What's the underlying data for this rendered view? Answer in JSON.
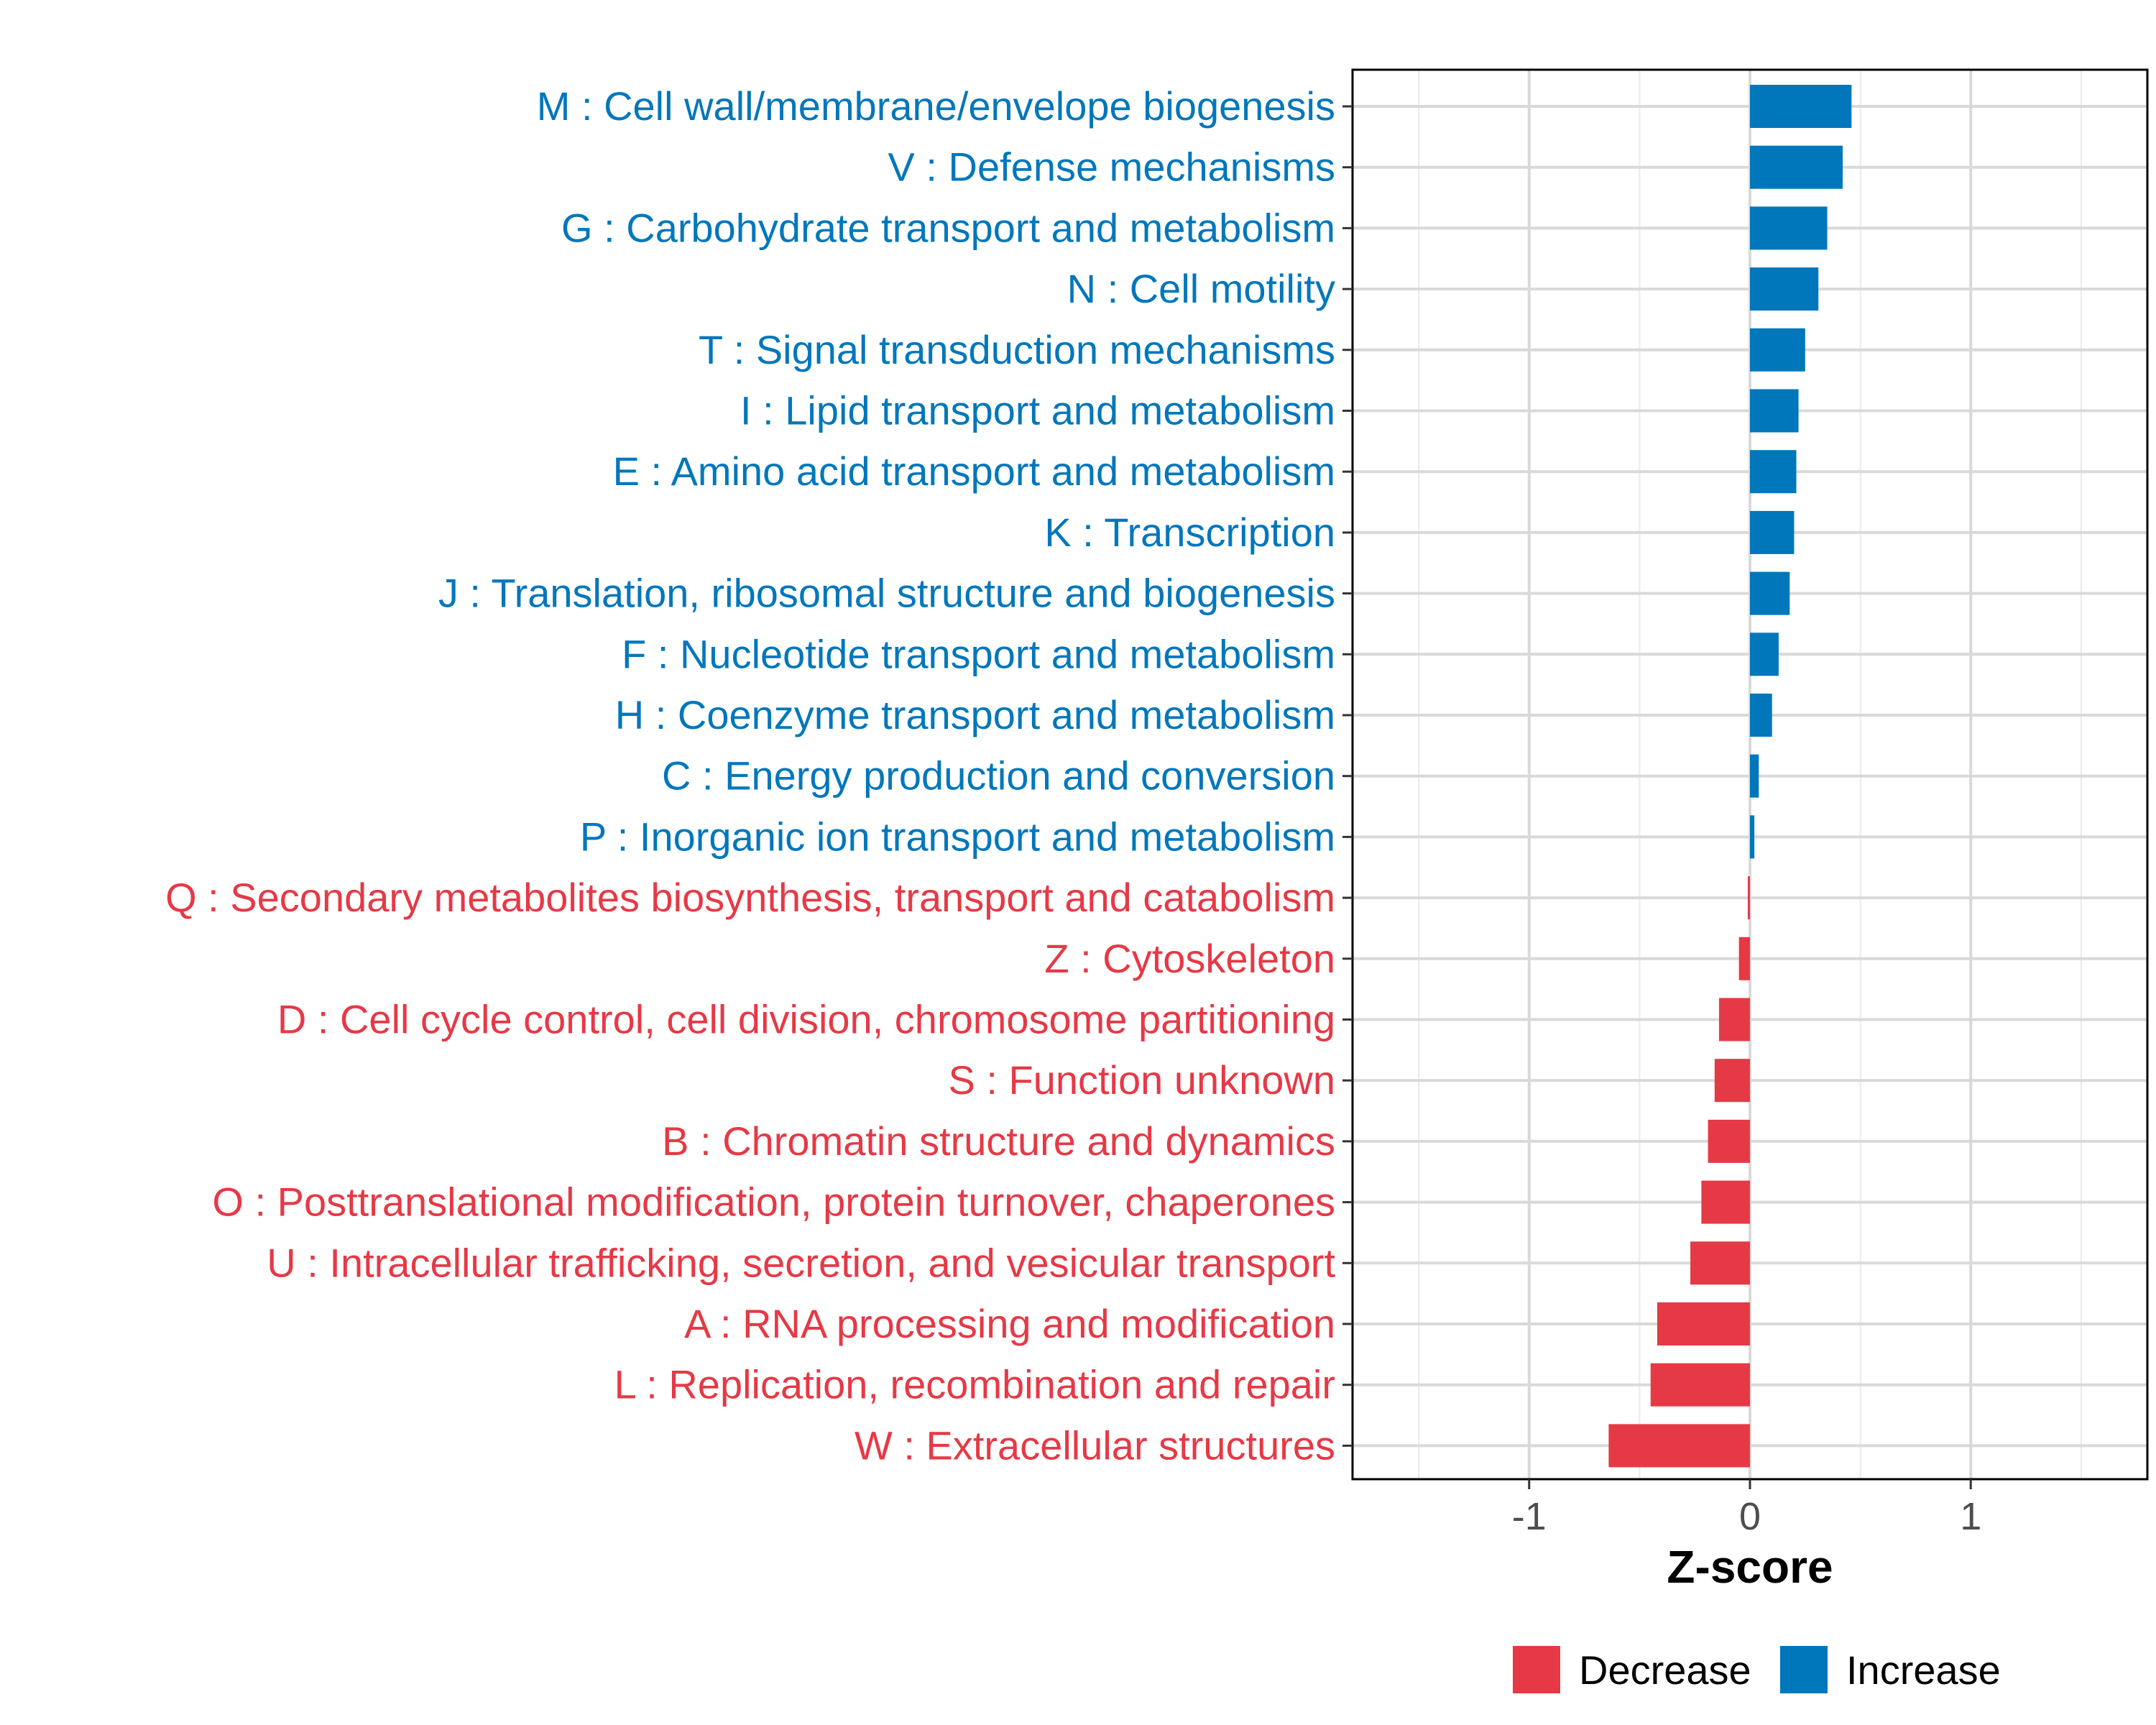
{
  "chart_data": {
    "type": "bar",
    "orientation": "horizontal",
    "xlabel": "Z-score",
    "ylabel": "",
    "xlim": [
      -1.8,
      1.8
    ],
    "xticks": [
      -1,
      0,
      1
    ],
    "xtick_labels": [
      "-1",
      "0",
      "1"
    ],
    "grid": true,
    "legend_position": "bottom",
    "colors": {
      "Decrease": "#E63946",
      "Increase": "#0077BB"
    },
    "legend": [
      {
        "name": "Decrease",
        "color": "#E63946"
      },
      {
        "name": "Increase",
        "color": "#0077BB"
      }
    ],
    "categories": [
      "M : Cell wall/membrane/envelope biogenesis",
      "V : Defense mechanisms",
      "G : Carbohydrate transport and metabolism",
      "N : Cell motility",
      "T : Signal transduction mechanisms",
      "I : Lipid transport and metabolism",
      "E : Amino acid transport and metabolism",
      "K : Transcription",
      "J : Translation, ribosomal structure and biogenesis",
      "F : Nucleotide transport and metabolism",
      "H : Coenzyme transport and metabolism",
      "C : Energy production and conversion",
      "P : Inorganic ion transport and metabolism",
      "Q : Secondary metabolites biosynthesis, transport and catabolism",
      "Z : Cytoskeleton",
      "D : Cell cycle control, cell division, chromosome partitioning",
      "S : Function unknown",
      "B : Chromatin structure and dynamics",
      "O : Posttranslational modification, protein turnover, chaperones",
      "U : Intracellular trafficking, secretion, and vesicular transport",
      "A : RNA processing and modification",
      "L : Replication, recombination and repair",
      "W : Extracellular structures"
    ],
    "values": [
      0.46,
      0.42,
      0.35,
      0.31,
      0.25,
      0.22,
      0.21,
      0.2,
      0.18,
      0.13,
      0.1,
      0.04,
      0.02,
      -0.01,
      -0.05,
      -0.14,
      -0.16,
      -0.19,
      -0.22,
      -0.27,
      -0.42,
      -0.45,
      -0.64
    ],
    "groups": [
      "Increase",
      "Increase",
      "Increase",
      "Increase",
      "Increase",
      "Increase",
      "Increase",
      "Increase",
      "Increase",
      "Increase",
      "Increase",
      "Increase",
      "Increase",
      "Decrease",
      "Decrease",
      "Decrease",
      "Decrease",
      "Decrease",
      "Decrease",
      "Decrease",
      "Decrease",
      "Decrease",
      "Decrease"
    ]
  }
}
